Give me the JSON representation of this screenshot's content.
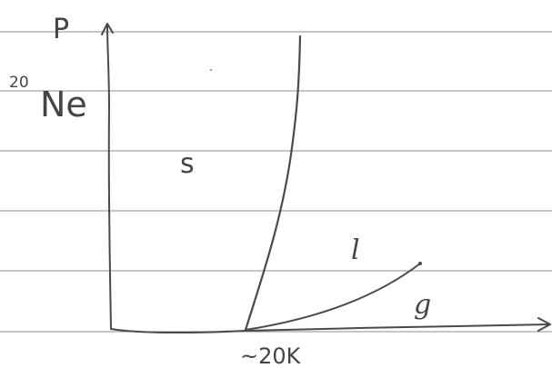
{
  "diagram": {
    "isotope_mass_number": "20",
    "element_symbol": "Ne",
    "y_axis_label": "P",
    "region_solid": "s",
    "region_liquid": "l",
    "region_gas": "g",
    "temperature_label": "~20K"
  },
  "colors": {
    "ink": "#4a4a4a",
    "ruled_line": "#8c8c8c",
    "paper": "#ffffff"
  }
}
